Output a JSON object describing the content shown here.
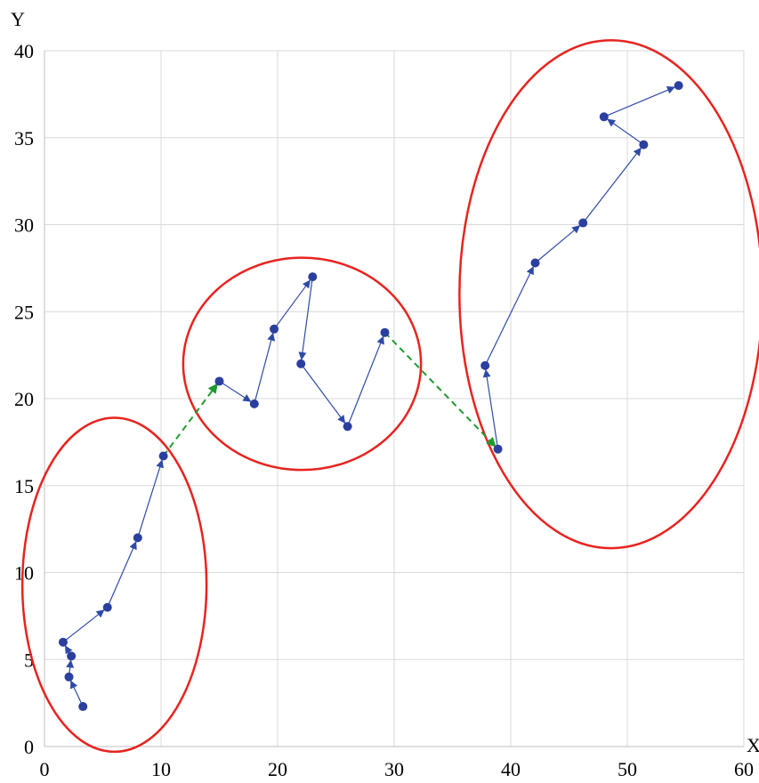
{
  "chart_data": {
    "type": "scatter",
    "title": "",
    "xlabel": "X",
    "ylabel": "Y",
    "xlim": [
      0,
      60
    ],
    "ylim": [
      0,
      40
    ],
    "x_ticks": [
      0,
      10,
      20,
      30,
      40,
      50,
      60
    ],
    "y_ticks": [
      0,
      5,
      10,
      15,
      20,
      25,
      30,
      35,
      40
    ],
    "grid": true,
    "colors": {
      "points": "#2b3f9e",
      "path": "#2e4aa8",
      "transition": "#1f9a2e",
      "clusters": "#e8231f",
      "grid": "#d9d9d9"
    },
    "series": [
      {
        "points": [
          {
            "x": 3.3,
            "y": 2.3
          },
          {
            "x": 2.1,
            "y": 4.0
          },
          {
            "x": 2.3,
            "y": 5.2
          },
          {
            "x": 1.6,
            "y": 6.0
          },
          {
            "x": 5.4,
            "y": 8.0
          },
          {
            "x": 8.0,
            "y": 12.0
          },
          {
            "x": 10.2,
            "y": 16.7
          }
        ]
      },
      {
        "points": [
          {
            "x": 15.0,
            "y": 21.0
          },
          {
            "x": 18.0,
            "y": 19.7
          },
          {
            "x": 19.7,
            "y": 24.0
          },
          {
            "x": 23.0,
            "y": 27.0
          },
          {
            "x": 22.0,
            "y": 22.0
          },
          {
            "x": 26.0,
            "y": 18.4
          },
          {
            "x": 29.2,
            "y": 23.8
          }
        ]
      },
      {
        "points": [
          {
            "x": 38.9,
            "y": 17.1
          },
          {
            "x": 37.8,
            "y": 21.9
          },
          {
            "x": 42.1,
            "y": 27.8
          },
          {
            "x": 46.2,
            "y": 30.1
          },
          {
            "x": 51.4,
            "y": 34.6
          },
          {
            "x": 48.0,
            "y": 36.2
          },
          {
            "x": 54.4,
            "y": 38.0
          }
        ]
      }
    ],
    "transitions": [
      {
        "from": {
          "x": 10.2,
          "y": 16.7
        },
        "to": {
          "x": 15.0,
          "y": 21.0
        }
      },
      {
        "from": {
          "x": 29.2,
          "y": 23.8
        },
        "to": {
          "x": 38.9,
          "y": 17.1
        }
      }
    ],
    "clusters": [
      {
        "cx": 6.0,
        "cy": 9.3,
        "rx": 7.9,
        "ry": 9.6
      },
      {
        "cx": 22.1,
        "cy": 22.0,
        "rx": 10.2,
        "ry": 6.1
      },
      {
        "cx": 48.6,
        "cy": 26.0,
        "rx": 13.0,
        "ry": 14.6
      }
    ]
  }
}
